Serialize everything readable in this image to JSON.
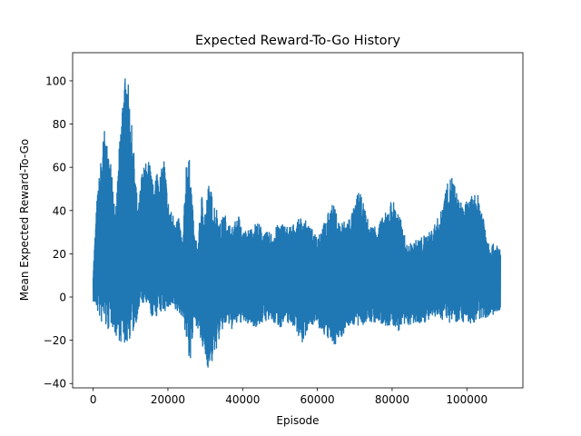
{
  "chart_data": {
    "type": "line",
    "title": "Expected Reward-To-Go History",
    "xlabel": "Episode",
    "ylabel": "Mean Expected Reward-To-Go",
    "xlim": [
      -5500,
      115000
    ],
    "ylim": [
      -42,
      113
    ],
    "x_ticks": [
      0,
      20000,
      40000,
      60000,
      80000,
      100000
    ],
    "x_tick_labels": [
      "0",
      "20000",
      "40000",
      "60000",
      "80000",
      "100000"
    ],
    "y_ticks": [
      -40,
      -20,
      0,
      20,
      40,
      60,
      80,
      100
    ],
    "y_tick_labels": [
      "−40",
      "−20",
      "0",
      "20",
      "40",
      "60",
      "80",
      "100"
    ],
    "grid": false,
    "series": [
      {
        "color": "#1f77b4",
        "style": "dense oscillating line (max/min envelope per episode window)",
        "x": [
          0,
          1000,
          2000,
          3000,
          4000,
          5000,
          6000,
          7000,
          8000,
          9000,
          10000,
          11000,
          12000,
          13000,
          14000,
          15000,
          16000,
          17000,
          18000,
          19000,
          20000,
          21000,
          22000,
          23000,
          24000,
          25000,
          26000,
          27000,
          28000,
          29000,
          30000,
          31000,
          32000,
          33000,
          34000,
          35000,
          36000,
          37000,
          38000,
          39000,
          40000,
          42000,
          44000,
          46000,
          48000,
          50000,
          52000,
          54000,
          56000,
          58000,
          60000,
          62000,
          64000,
          66000,
          68000,
          70000,
          71000,
          72000,
          74000,
          76000,
          78000,
          80000,
          82000,
          84000,
          86000,
          88000,
          90000,
          92000,
          93000,
          94000,
          96000,
          98000,
          100000,
          102000,
          103000,
          104000,
          106000,
          108000,
          109000
        ],
        "y_max": [
          12,
          45,
          63,
          78,
          66,
          62,
          38,
          70,
          97,
          106,
          86,
          65,
          40,
          58,
          62,
          64,
          52,
          60,
          57,
          65,
          45,
          39,
          38,
          36,
          26,
          68,
          62,
          30,
          24,
          48,
          42,
          54,
          46,
          42,
          34,
          39,
          36,
          32,
          35,
          38,
          30,
          32,
          35,
          30,
          30,
          35,
          33,
          34,
          38,
          32,
          30,
          35,
          44,
          35,
          36,
          42,
          50,
          45,
          33,
          34,
          38,
          46,
          38,
          24,
          26,
          28,
          30,
          36,
          39,
          49,
          57,
          44,
          44,
          48,
          47,
          42,
          25,
          24,
          23
        ],
        "y_min": [
          -2,
          -6,
          -12,
          -14,
          -16,
          -13,
          -18,
          -20,
          -24,
          -22,
          -19,
          -16,
          -8,
          -3,
          -5,
          -8,
          -10,
          -9,
          -8,
          -7,
          -6,
          -6,
          -7,
          -8,
          -9,
          -22,
          -32,
          -12,
          -14,
          -24,
          -28,
          -35,
          -30,
          -24,
          -18,
          -14,
          -13,
          -15,
          -14,
          -12,
          -12,
          -13,
          -14,
          -11,
          -12,
          -14,
          -12,
          -14,
          -22,
          -12,
          -14,
          -18,
          -23,
          -20,
          -14,
          -13,
          -15,
          -13,
          -12,
          -12,
          -14,
          -14,
          -16,
          -13,
          -13,
          -12,
          -11,
          -10,
          -10,
          -11,
          -12,
          -11,
          -12,
          -13,
          -12,
          -10,
          -9,
          -8,
          -8
        ]
      }
    ]
  }
}
